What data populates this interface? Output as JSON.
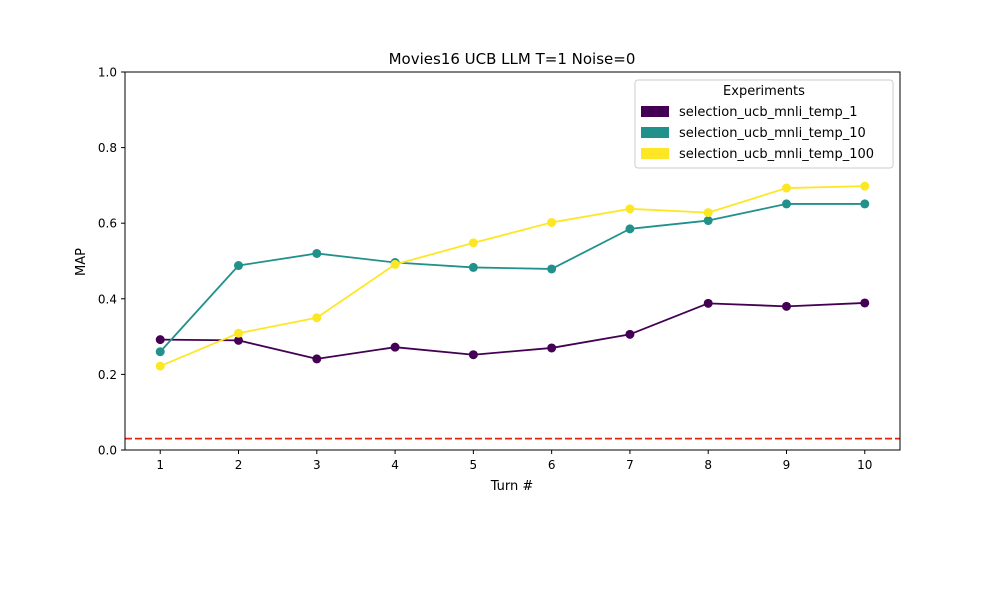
{
  "chart_data": {
    "type": "line",
    "title": "Movies16 UCB LLM T=1 Noise=0",
    "xlabel": "Turn #",
    "ylabel": "MAP",
    "x": [
      1,
      2,
      3,
      4,
      5,
      6,
      7,
      8,
      9,
      10
    ],
    "x_tick_labels": [
      "1",
      "2",
      "3",
      "4",
      "5",
      "6",
      "7",
      "8",
      "9",
      "10"
    ],
    "xlim": [
      0.55,
      10.45
    ],
    "ylim": [
      0,
      1
    ],
    "y_ticks": [
      0,
      0.2,
      0.4,
      0.6,
      0.8,
      1.0
    ],
    "y_tick_labels": [
      "0.0",
      "0.2",
      "0.4",
      "0.6",
      "0.8",
      "1.0"
    ],
    "legend_title": "Experiments",
    "legend_position": "top-right",
    "grid": false,
    "series": [
      {
        "name": "selection_ucb_mnli_temp_1",
        "color": "#440154",
        "values": [
          0.292,
          0.29,
          0.241,
          0.272,
          0.252,
          0.27,
          0.306,
          0.388,
          0.38,
          0.389
        ]
      },
      {
        "name": "selection_ucb_mnli_temp_10",
        "color": "#21918c",
        "values": [
          0.26,
          0.488,
          0.52,
          0.496,
          0.483,
          0.479,
          0.585,
          0.607,
          0.651,
          0.651
        ]
      },
      {
        "name": "selection_ucb_mnli_temp_100",
        "color": "#fde725",
        "values": [
          0.222,
          0.309,
          0.35,
          0.491,
          0.548,
          0.602,
          0.638,
          0.628,
          0.693,
          0.698
        ]
      }
    ],
    "reference_line": {
      "value": 0.03,
      "color": "#e8250c",
      "style": "dashed"
    }
  }
}
